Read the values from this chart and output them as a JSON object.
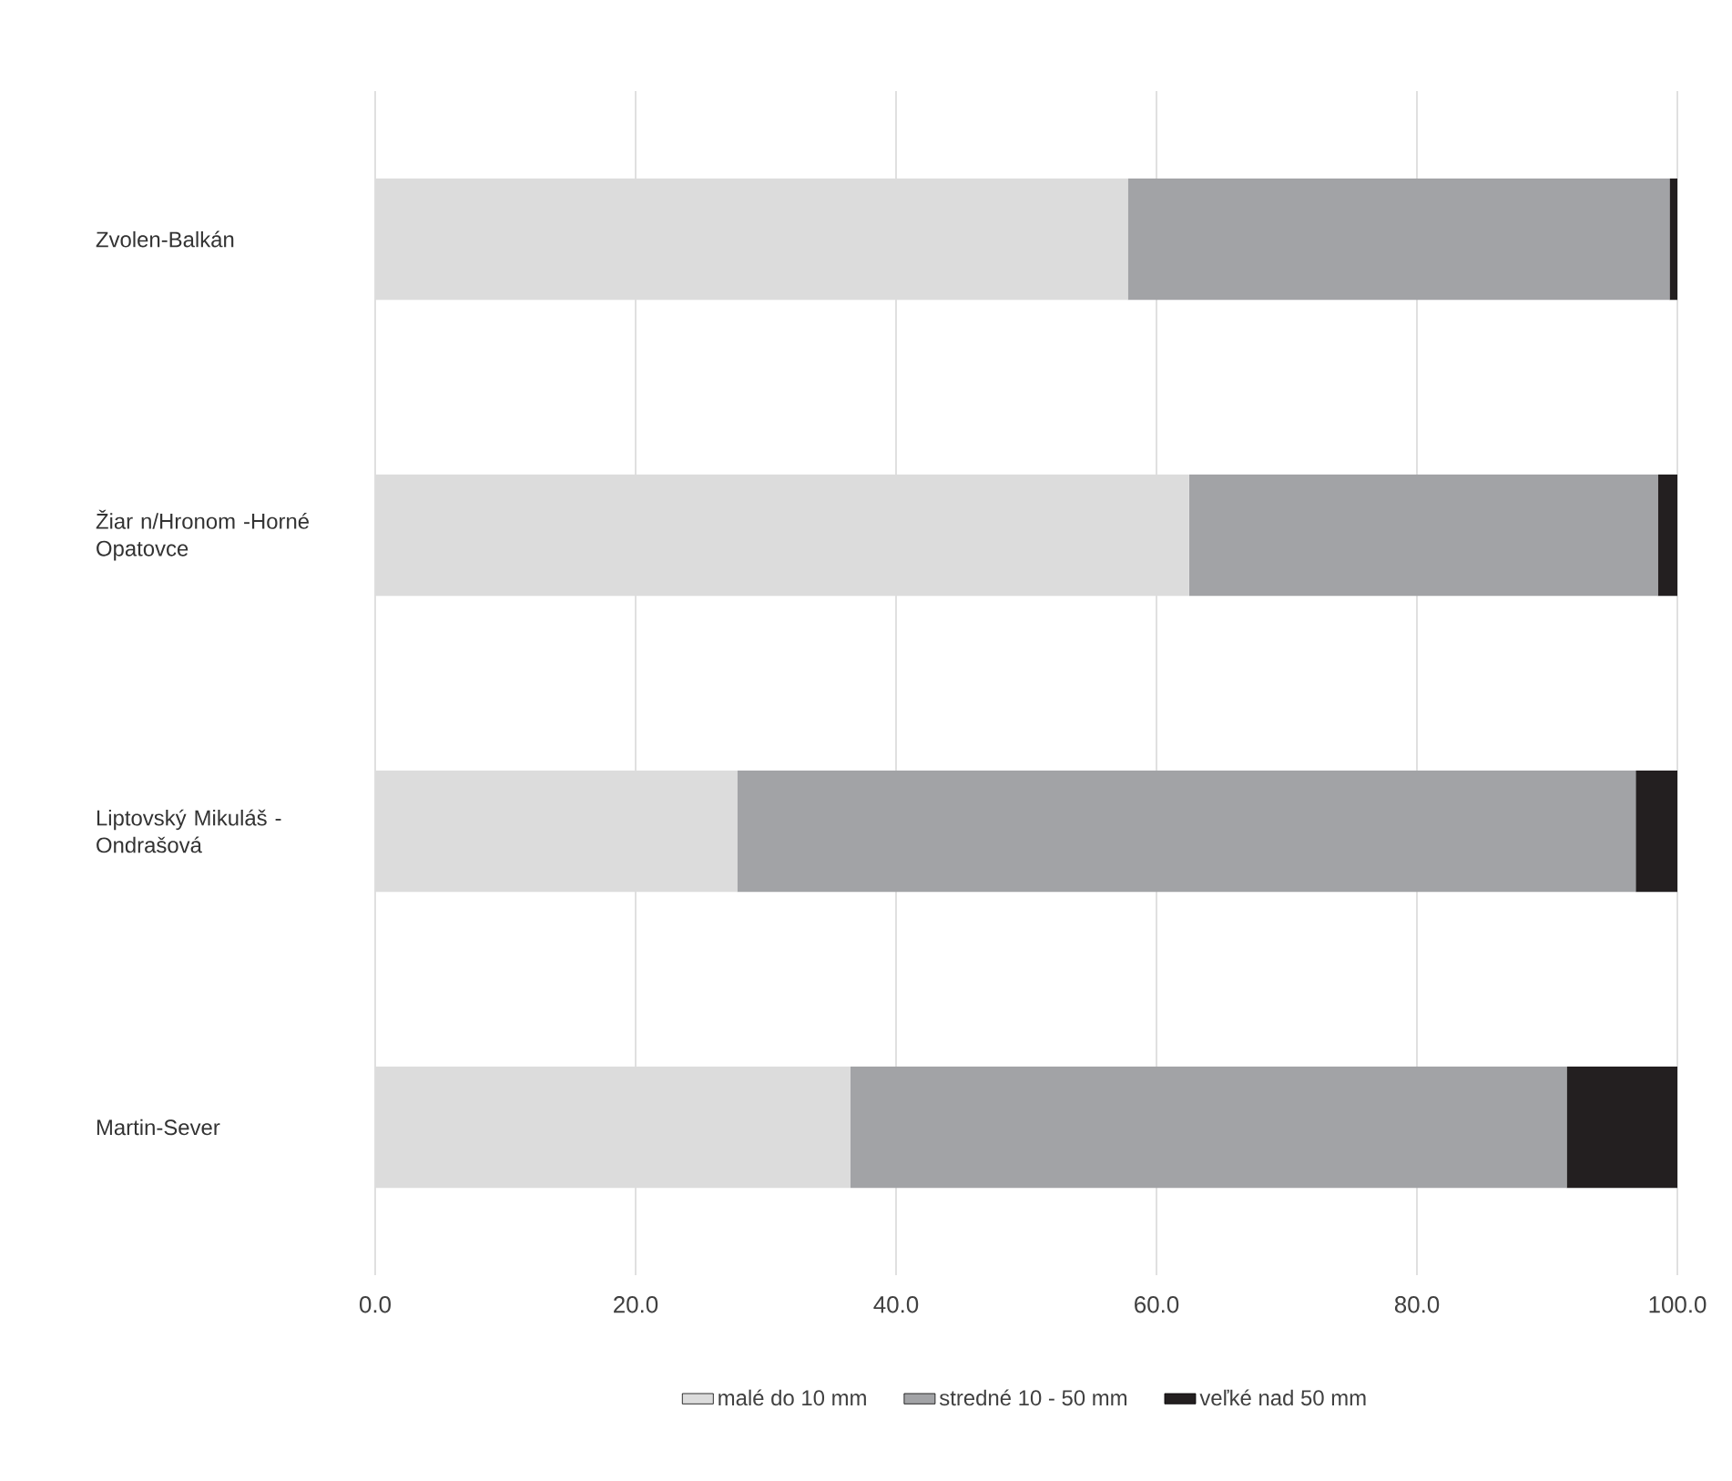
{
  "chart_data": {
    "type": "bar",
    "orientation": "horizontal",
    "stacked": true,
    "categories": [
      "Zvolen-Balkán",
      "Žiar n/Hronom -Horné Opatovce",
      "Liptovský Mikuláš -Ondrašová",
      "Martin-Sever"
    ],
    "series": [
      {
        "name": "malé do 10 mm",
        "color": "#dcdcdc",
        "values": [
          57.8,
          62.5,
          27.8,
          36.5
        ]
      },
      {
        "name": "stredné 10 - 50 mm",
        "color": "#a2a3a6",
        "values": [
          41.6,
          36.0,
          69.0,
          55.0
        ]
      },
      {
        "name": "veľké nad 50 mm",
        "color": "#231f20",
        "values": [
          0.6,
          1.5,
          3.2,
          8.5
        ]
      }
    ],
    "xlim": [
      0,
      100
    ],
    "xticks": [
      {
        "value": 0,
        "label": "0.0"
      },
      {
        "value": 20,
        "label": "20.0"
      },
      {
        "value": 40,
        "label": "40.0"
      },
      {
        "value": 60,
        "label": "60.0"
      },
      {
        "value": 80,
        "label": "80.0"
      },
      {
        "value": 100,
        "label": "100.0"
      }
    ],
    "grid": "x",
    "legend": "bottom"
  }
}
